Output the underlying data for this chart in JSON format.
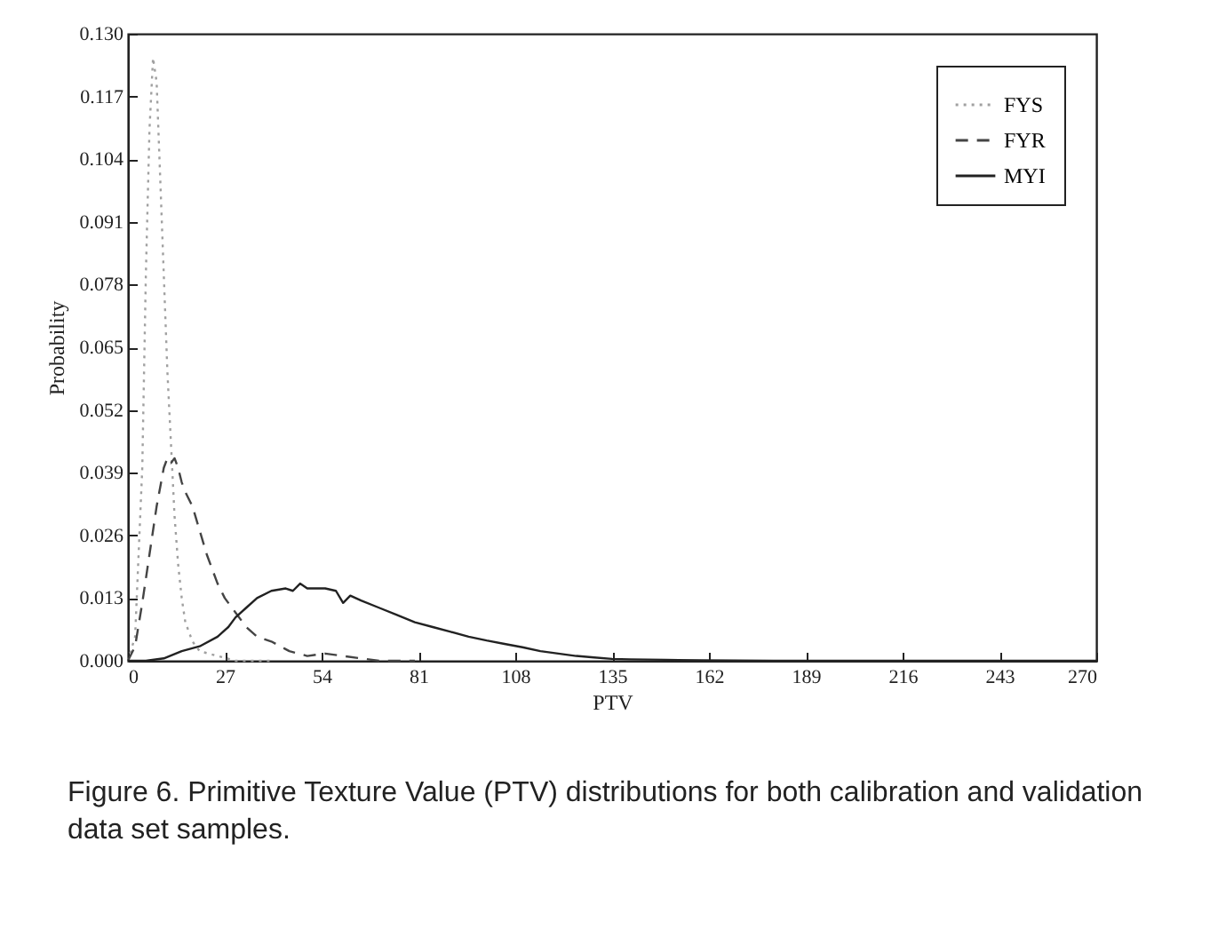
{
  "chart_data": {
    "type": "line",
    "xlabel": "PTV",
    "ylabel": "Probability",
    "annotations": [
      "Figure 6. Primitive Texture Value (PTV) distributions for both calibration and validation data set samples."
    ],
    "xlim": [
      0,
      270
    ],
    "xticks": [
      0,
      27,
      54,
      81,
      108,
      135,
      162,
      189,
      216,
      243,
      270
    ],
    "ylim": [
      0,
      0.13
    ],
    "yticks": [
      {
        "value": 0,
        "label": "0.000"
      },
      0.013,
      0.026,
      0.039,
      0.052,
      0.065,
      0.078,
      0.091,
      0.104,
      0.117,
      {
        "value": 0.13,
        "label": "0.130"
      }
    ],
    "grid": false,
    "legend": "top right",
    "marker": "none",
    "series": [
      {
        "name": "FYS",
        "color": "#a0a0a0",
        "line_style": "dotted",
        "x": [
          0,
          2,
          4,
          5,
          6,
          7,
          8,
          9,
          10,
          11,
          12,
          13,
          14,
          15,
          16,
          18,
          20,
          25,
          30,
          40
        ],
        "values": [
          0,
          0.005,
          0.04,
          0.08,
          0.11,
          0.125,
          0.12,
          0.1,
          0.08,
          0.06,
          0.045,
          0.03,
          0.02,
          0.013,
          0.008,
          0.004,
          0.002,
          0.001,
          0,
          0
        ]
      },
      {
        "name": "FYR",
        "color": "#444444",
        "line_style": "dashed",
        "x": [
          0,
          2,
          4,
          6,
          8,
          10,
          11,
          12,
          13,
          14,
          15,
          16,
          18,
          20,
          22,
          25,
          27,
          30,
          33,
          36,
          40,
          45,
          50,
          55,
          60,
          65,
          70,
          80
        ],
        "values": [
          0,
          0.003,
          0.012,
          0.022,
          0.032,
          0.04,
          0.042,
          0.041,
          0.042,
          0.04,
          0.037,
          0.035,
          0.032,
          0.027,
          0.022,
          0.016,
          0.013,
          0.01,
          0.007,
          0.005,
          0.004,
          0.002,
          0.001,
          0.0015,
          0.001,
          0.0005,
          0,
          0
        ]
      },
      {
        "name": "MYI",
        "color": "#222222",
        "line_style": "solid",
        "x": [
          0,
          5,
          10,
          15,
          20,
          25,
          28,
          30,
          33,
          36,
          40,
          44,
          46,
          48,
          50,
          55,
          58,
          60,
          62,
          65,
          70,
          75,
          80,
          85,
          90,
          95,
          100,
          105,
          110,
          115,
          120,
          125,
          130,
          135,
          140,
          150,
          160,
          180,
          200,
          230,
          250,
          270
        ],
        "values": [
          0,
          0,
          0.0005,
          0.002,
          0.003,
          0.005,
          0.007,
          0.009,
          0.011,
          0.013,
          0.0145,
          0.015,
          0.0145,
          0.016,
          0.015,
          0.015,
          0.0145,
          0.012,
          0.0135,
          0.0125,
          0.011,
          0.0095,
          0.008,
          0.007,
          0.006,
          0.005,
          0.0042,
          0.0035,
          0.0028,
          0.002,
          0.0015,
          0.001,
          0.0007,
          0.0004,
          0.0003,
          0.0002,
          0.0001,
          0,
          0,
          0,
          0,
          0
        ]
      }
    ]
  }
}
